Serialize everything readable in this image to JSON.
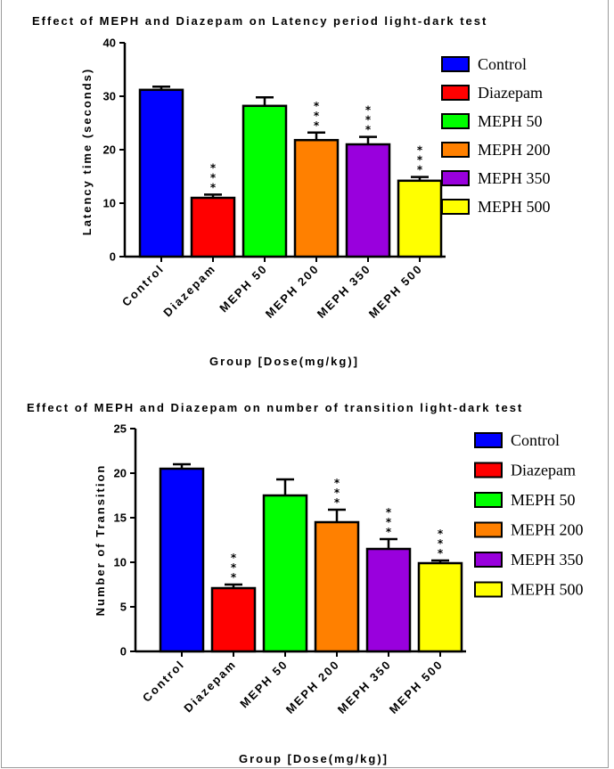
{
  "chart_data": [
    {
      "type": "bar",
      "title": "Effect of MEPH and Diazepam on Latency period light-dark test",
      "xlabel": "Group [Dose(mg/kg)]",
      "ylabel": "Latency time (seconds)",
      "ylim": [
        0,
        40
      ],
      "yticks": [
        "0",
        "10",
        "20",
        "30",
        "40"
      ],
      "categories": [
        "Control",
        "Diazepam",
        "MEPH 50",
        "MEPH 200",
        "MEPH 350",
        "MEPH 500"
      ],
      "values": [
        31.2,
        11.0,
        28.2,
        21.8,
        21.0,
        14.2
      ],
      "errors": [
        0.6,
        0.6,
        1.6,
        1.4,
        1.4,
        0.7
      ],
      "significance": [
        "",
        "***",
        "",
        "***",
        "***",
        "***"
      ],
      "colors": [
        "#0000ff",
        "#ff0000",
        "#00ff00",
        "#ff8000",
        "#9900dd",
        "#ffff00"
      ],
      "legend": [
        "Control",
        "Diazepam",
        "MEPH 50",
        "MEPH 200",
        "MEPH 350",
        "MEPH 500"
      ],
      "legend_position": "right"
    },
    {
      "type": "bar",
      "title": "Effect of MEPH and Diazepam on number of transition light-dark test",
      "xlabel": "Group [Dose(mg/kg)]",
      "ylabel": "Number of Transition",
      "ylim": [
        0,
        25
      ],
      "yticks": [
        "0",
        "5",
        "10",
        "15",
        "20",
        "25"
      ],
      "categories": [
        "Control",
        "Diazepam",
        "MEPH 50",
        "MEPH 200",
        "MEPH 350",
        "MEPH 500"
      ],
      "values": [
        20.5,
        7.1,
        17.5,
        14.5,
        11.5,
        9.9
      ],
      "errors": [
        0.5,
        0.4,
        1.8,
        1.4,
        1.1,
        0.3
      ],
      "significance": [
        "",
        "***",
        "",
        "***",
        "***",
        "***"
      ],
      "colors": [
        "#0000ff",
        "#ff0000",
        "#00ff00",
        "#ff8000",
        "#9900dd",
        "#ffff00"
      ],
      "legend": [
        "Control",
        "Diazepam",
        "MEPH 50",
        "MEPH 200",
        "MEPH 350",
        "MEPH 500"
      ],
      "legend_position": "right"
    }
  ]
}
